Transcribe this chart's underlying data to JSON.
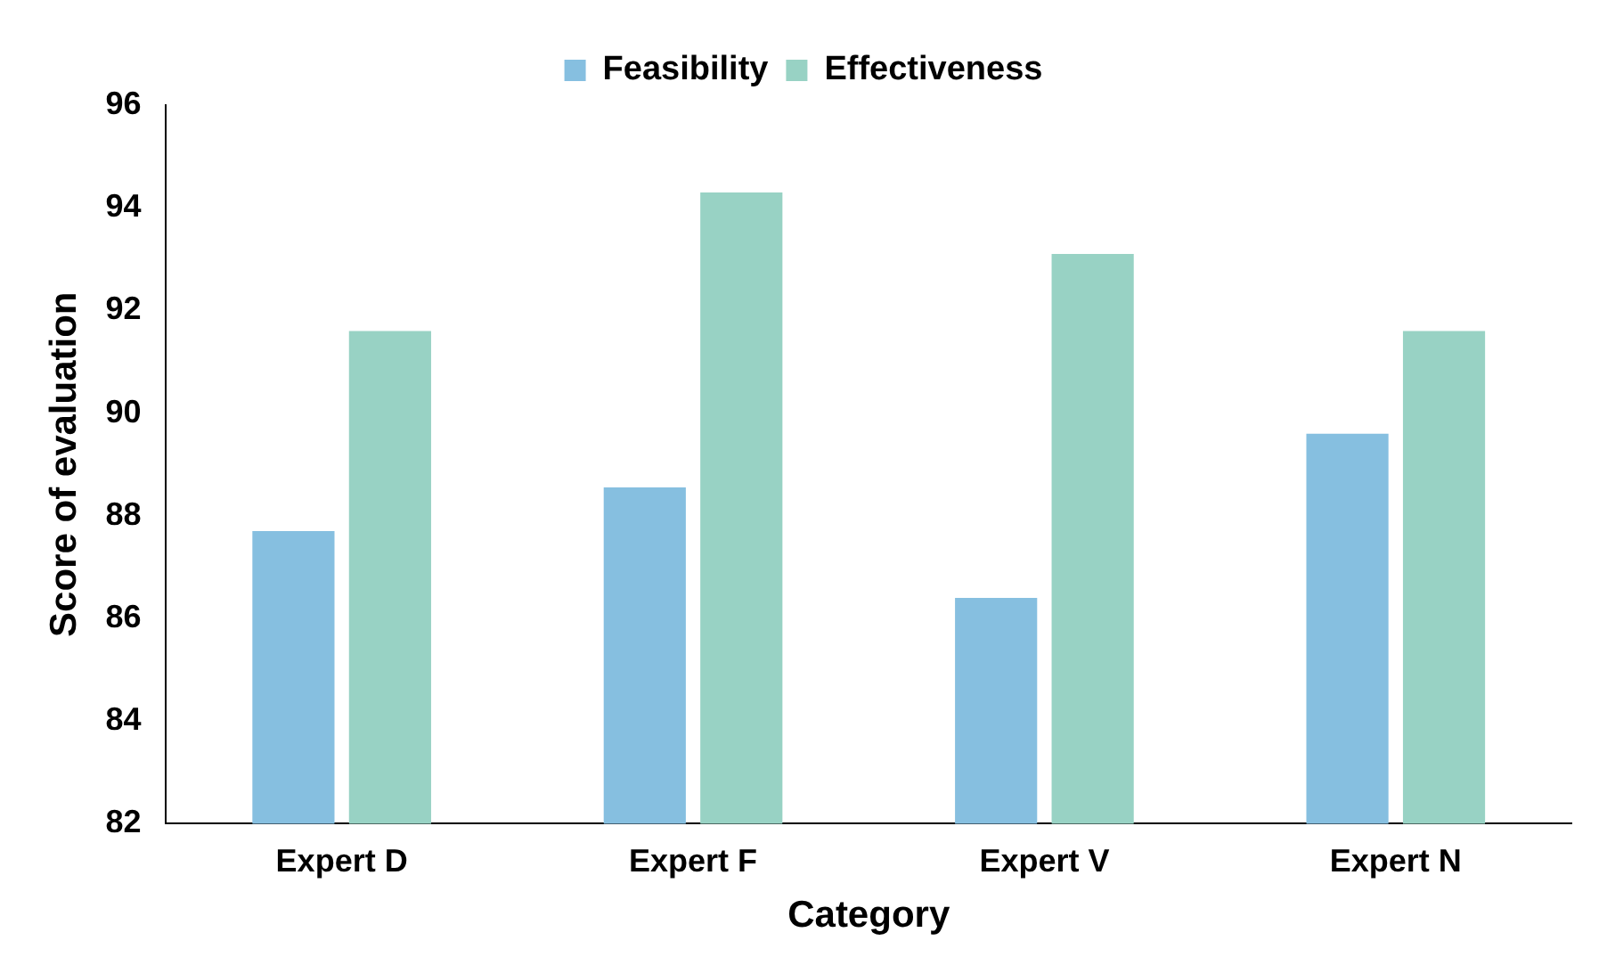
{
  "chart_data": {
    "type": "bar",
    "xlabel": "Category",
    "ylabel": "Score of evaluation",
    "categories": [
      "Expert D",
      "Expert F",
      "Expert V",
      "Expert N"
    ],
    "series": [
      {
        "name": "Feasibility",
        "color": "#86bfe0",
        "values": [
          87.7,
          88.55,
          86.4,
          89.6
        ]
      },
      {
        "name": "Effectiveness",
        "color": "#98d2c4",
        "values": [
          91.6,
          94.3,
          93.1,
          91.6
        ]
      }
    ],
    "ylim": [
      82,
      96
    ],
    "yticks": [
      82,
      84,
      86,
      88,
      90,
      92,
      94,
      96
    ],
    "grid": false,
    "legend": "top"
  }
}
